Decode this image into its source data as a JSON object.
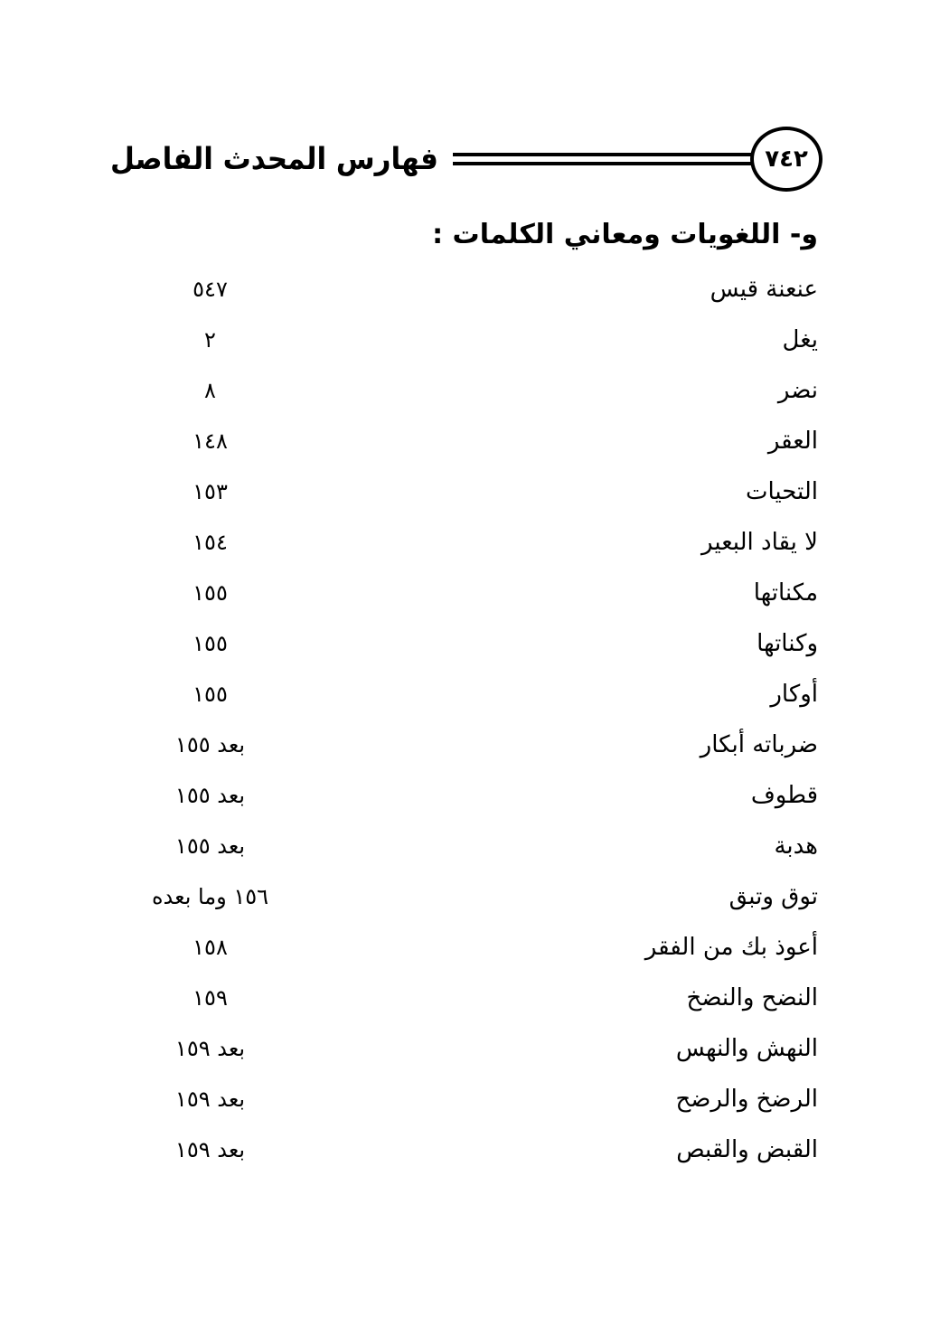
{
  "header": {
    "page_number": "٧٤٢",
    "book_title": "فهارس المحدث الفاصل"
  },
  "section": {
    "heading": "و- اللغويات ومعاني الكلمات :"
  },
  "entries": [
    {
      "term": "عنعنة قيس",
      "page": "٥٤٧"
    },
    {
      "term": "يغل",
      "page": "٢"
    },
    {
      "term": "نضر",
      "page": "٨"
    },
    {
      "term": "العقر",
      "page": "١٤٨"
    },
    {
      "term": "التحيات",
      "page": "١٥٣"
    },
    {
      "term": "لا يقاد البعير",
      "page": "١٥٤"
    },
    {
      "term": "مكناتها",
      "page": "١٥٥"
    },
    {
      "term": "وكناتها",
      "page": "١٥٥"
    },
    {
      "term": "أوكار",
      "page": "١٥٥"
    },
    {
      "term": "ضرباته أبكار",
      "page": "بعد ١٥٥"
    },
    {
      "term": "قطوف",
      "page": "بعد ١٥٥"
    },
    {
      "term": "هدبة",
      "page": "بعد ١٥٥"
    },
    {
      "term": "توق وتبق",
      "page": "١٥٦ وما بعده"
    },
    {
      "term": "أعوذ بك من الفقر",
      "page": "١٥٨"
    },
    {
      "term": "النضح والنضخ",
      "page": "١٥٩"
    },
    {
      "term": "النهش والنهس",
      "page": "بعد ١٥٩"
    },
    {
      "term": "الرضخ والرضح",
      "page": "بعد ١٥٩"
    },
    {
      "term": "القبض والقبص",
      "page": "بعد ١٥٩"
    }
  ]
}
